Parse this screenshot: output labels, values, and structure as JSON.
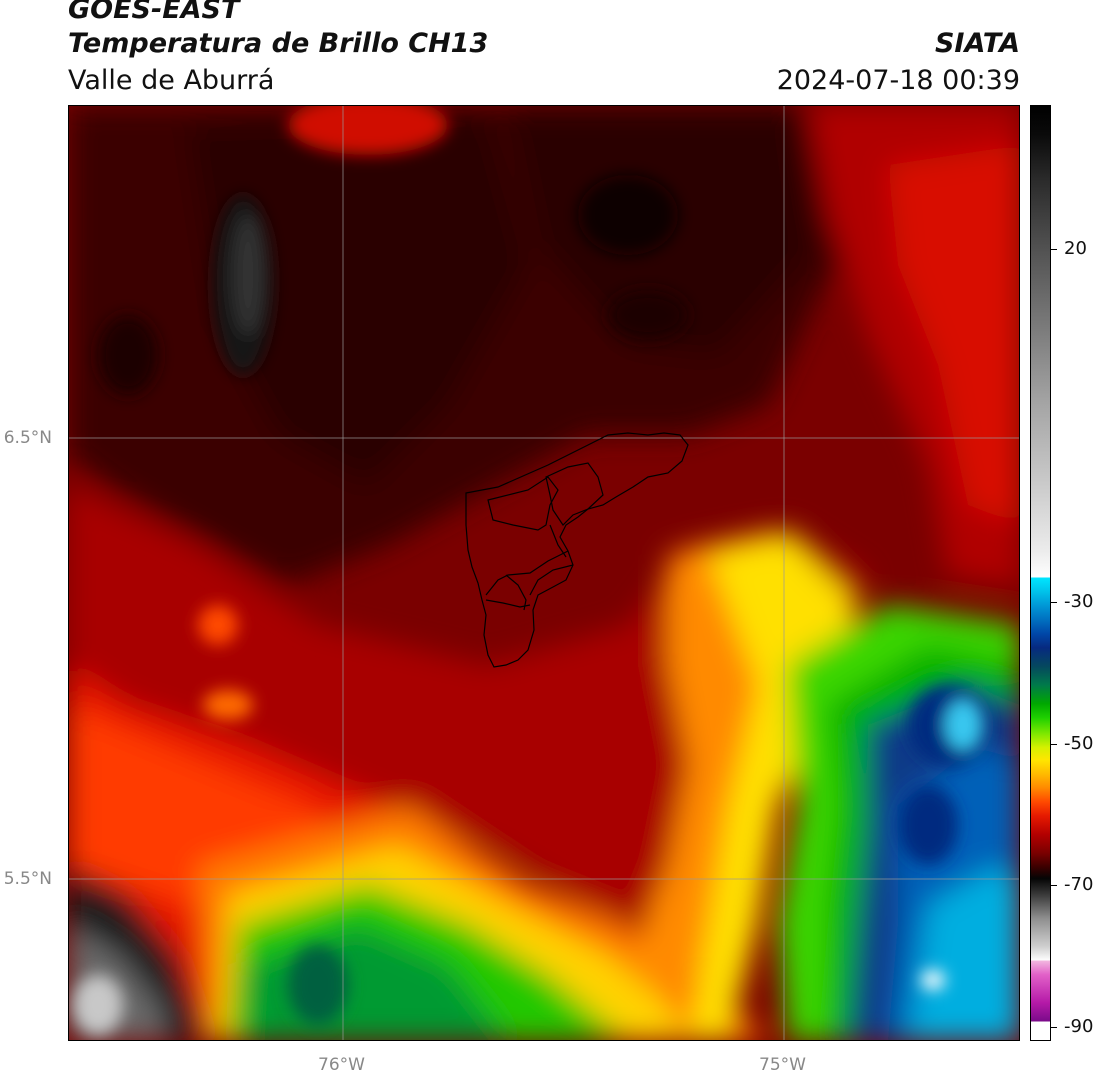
{
  "header": {
    "satellite": "GOES-EAST",
    "product": "Temperatura de Brillo CH13",
    "region": "Valle de Aburrá",
    "organization": "SIATA",
    "datetime": "2024-07-18 00:39"
  },
  "map": {
    "lat_labels": [
      "6.5°N",
      "5.5°N"
    ],
    "lon_labels": [
      "76°W",
      "75°W"
    ],
    "colors": {
      "very_cold_white": "#ffffff",
      "very_cold_magenta": "#b51aa8",
      "cold_cyan": "#00e6ff",
      "cold_blue": "#062a80",
      "green": "#1fd000",
      "yellow": "#ffe600",
      "orange": "#ff8a00",
      "red": "#e61a00",
      "dark_red": "#6e0000",
      "near_black": "#200000"
    }
  },
  "colorbar": {
    "labels": [
      "20",
      "-30",
      "-50",
      "-70",
      "-90"
    ],
    "values": [
      20,
      -30,
      -50,
      -70,
      -90
    ]
  }
}
